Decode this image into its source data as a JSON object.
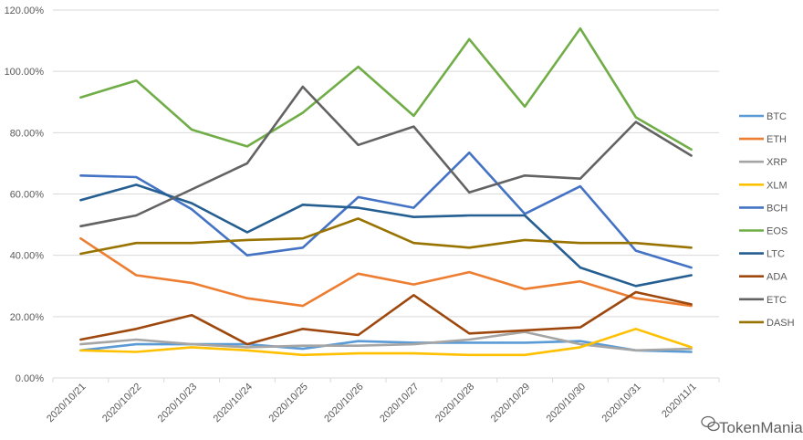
{
  "chart_data": {
    "type": "line",
    "title": "",
    "xlabel": "",
    "ylabel": "",
    "ylim": [
      0,
      120
    ],
    "y_ticks": [
      "0.00%",
      "20.00%",
      "40.00%",
      "60.00%",
      "80.00%",
      "100.00%",
      "120.00%"
    ],
    "grid": true,
    "legend_position": "right",
    "categories": [
      "2020/10/21",
      "2020/10/22",
      "2020/10/23",
      "2020/10/24",
      "2020/10/25",
      "2020/10/26",
      "2020/10/27",
      "2020/10/28",
      "2020/10/29",
      "2020/10/30",
      "2020/10/31",
      "2020/11/1"
    ],
    "series": [
      {
        "name": "BTC",
        "color": "#5B9BD5",
        "values": [
          9,
          11,
          11,
          11,
          9.5,
          12,
          11.5,
          11.5,
          11.5,
          12,
          9,
          8.5
        ]
      },
      {
        "name": "ETH",
        "color": "#ED7D31",
        "values": [
          45.5,
          33.5,
          31,
          26,
          23.5,
          34,
          30.5,
          34.5,
          29,
          31.5,
          26,
          23.5
        ]
      },
      {
        "name": "XRP",
        "color": "#A5A5A5",
        "values": [
          11,
          12.5,
          11,
          10,
          10.5,
          10.5,
          11,
          12.5,
          15,
          11,
          9,
          9.5
        ]
      },
      {
        "name": "XLM",
        "color": "#FFC000",
        "values": [
          9,
          8.5,
          10,
          9,
          7.5,
          8,
          8,
          7.5,
          7.5,
          10,
          16,
          10
        ]
      },
      {
        "name": "BCH",
        "color": "#4472C4",
        "values": [
          66,
          65.5,
          55,
          40,
          42.5,
          59,
          55.5,
          73.5,
          53.5,
          62.5,
          41.5,
          36
        ]
      },
      {
        "name": "EOS",
        "color": "#70AD47",
        "values": [
          91.5,
          97,
          81,
          75.5,
          86.5,
          101.5,
          85.5,
          110.5,
          88.5,
          114,
          85,
          74.5
        ]
      },
      {
        "name": "LTC",
        "color": "#255E91",
        "values": [
          58,
          63,
          57,
          47.5,
          56.5,
          55.5,
          52.5,
          53,
          53,
          36,
          30,
          33.5
        ]
      },
      {
        "name": "ADA",
        "color": "#9E480E",
        "values": [
          12.5,
          16,
          20.5,
          11,
          16,
          14,
          27,
          14.5,
          15.5,
          16.5,
          28,
          24
        ]
      },
      {
        "name": "ETC",
        "color": "#636363",
        "values": [
          49.5,
          53,
          61.5,
          70,
          95,
          76,
          82,
          60.5,
          66,
          65,
          83.5,
          72.5
        ]
      },
      {
        "name": "DASH",
        "color": "#997300",
        "values": [
          40.5,
          44,
          44,
          45,
          45.5,
          52,
          44,
          42.5,
          45,
          44,
          44,
          42.5
        ]
      }
    ]
  },
  "watermark": "TokenMania"
}
